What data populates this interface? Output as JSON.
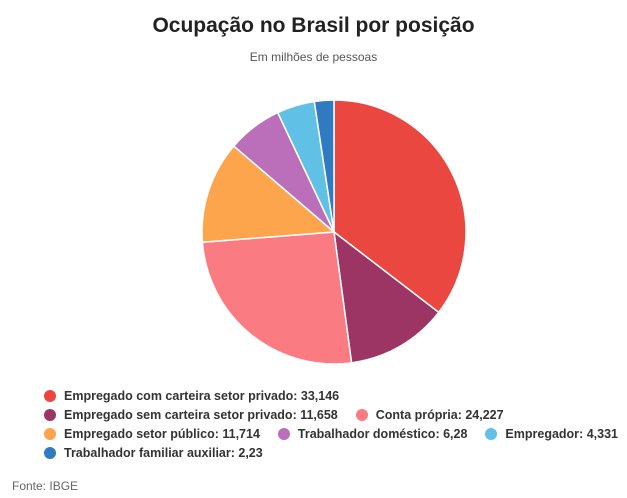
{
  "chart_data": {
    "type": "pie",
    "title": "Ocupação no Brasil por posição",
    "subtitle": "Em milhões de pessoas",
    "categories": [
      "Empregado com carteira setor privado",
      "Empregado sem carteira setor privado",
      "Conta própria",
      "Empregado setor público",
      "Trabalhador doméstico",
      "Empregador",
      "Trabalhador familiar auxiliar"
    ],
    "values": [
      33.146,
      11.658,
      24.227,
      11.714,
      6.28,
      4.331,
      2.23
    ],
    "value_labels": [
      "33,146",
      "11,658",
      "24,227",
      "11,714",
      "6,28",
      "4,331",
      "2,23"
    ],
    "colors": [
      "#e9473f",
      "#9c3563",
      "#fb7b82",
      "#fca54d",
      "#bb6fbb",
      "#61c0e6",
      "#2f7ac1"
    ],
    "legend_position": "bottom",
    "source": "Fonte: IBGE"
  }
}
